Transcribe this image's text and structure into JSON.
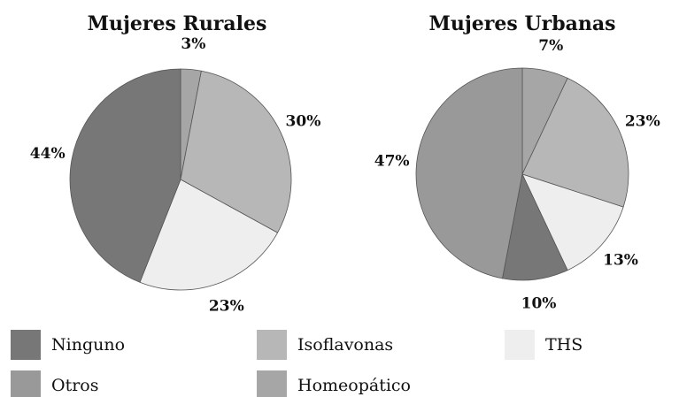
{
  "chart_data": [
    {
      "type": "pie",
      "title": "Mujeres Rurales",
      "categories": [
        "Homeopático",
        "Isoflavonas",
        "THS",
        "Ninguno"
      ],
      "values": [
        3,
        30,
        23,
        44
      ],
      "value_labels": [
        "3%",
        "30%",
        "23%",
        "44%"
      ],
      "colors": [
        "#a6a6a6",
        "#b7b7b7",
        "#eeeeee",
        "#777777"
      ]
    },
    {
      "type": "pie",
      "title": "Mujeres Urbanas",
      "categories": [
        "Homeopático",
        "Isoflavonas",
        "THS",
        "Ninguno",
        "Otros"
      ],
      "values": [
        7,
        23,
        13,
        10,
        47
      ],
      "value_labels": [
        "7%",
        "23%",
        "13%",
        "10%",
        "47%"
      ],
      "colors": [
        "#a6a6a6",
        "#b7b7b7",
        "#eeeeee",
        "#777777",
        "#999999"
      ]
    }
  ]
}
